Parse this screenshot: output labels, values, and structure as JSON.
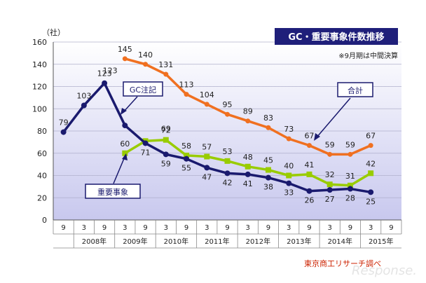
{
  "chart_data": {
    "type": "line",
    "title": "GC・重要事象件数推移",
    "note": "※9月期は中間決算",
    "unit_label": "（社）",
    "source": "東京商工リサーチ調べ",
    "watermark": "Response.",
    "ylim": [
      0,
      160
    ],
    "y_ticks": [
      "0",
      "20",
      "40",
      "60",
      "80",
      "100",
      "120",
      "140",
      "160"
    ],
    "x_ticks": [
      "9",
      "3",
      "9",
      "3",
      "9",
      "3",
      "9",
      "3",
      "9",
      "3",
      "9",
      "3",
      "9",
      "3",
      "9",
      "3",
      "9"
    ],
    "year_labels": [
      "2008年",
      "2009年",
      "2010年",
      "2011年",
      "2012年",
      "2013年",
      "2014年",
      "2015年"
    ],
    "grid": true,
    "series": [
      {
        "name": "合計",
        "color": "#f07020",
        "start_index": 3,
        "values": [
          145,
          140,
          131,
          113,
          104,
          95,
          89,
          83,
          73,
          67,
          59,
          59,
          67
        ],
        "labels": [
          "145",
          "140",
          "131",
          "113",
          "104",
          "95",
          "89",
          "83",
          "73",
          "67",
          "59",
          "59",
          "67"
        ]
      },
      {
        "name": "GC注記",
        "color": "#1a1a6e",
        "start_index": 0,
        "values": [
          79,
          103,
          123,
          85,
          69,
          59,
          55,
          47,
          42,
          41,
          38,
          33,
          26,
          27,
          28,
          25
        ],
        "labels": [
          "79",
          "103",
          "123",
          "",
          "",
          "59",
          "55",
          "47",
          "42",
          "41",
          "38",
          "33",
          "26",
          "27",
          "28",
          "25"
        ]
      },
      {
        "name": "重要事象",
        "color": "#99cc00",
        "start_index": 3,
        "values": [
          60,
          71,
          72,
          58,
          57,
          53,
          48,
          45,
          40,
          41,
          32,
          31,
          42
        ],
        "labels": [
          "60",
          "71",
          "72",
          "58",
          "57",
          "53",
          "48",
          "45",
          "40",
          "41",
          "32",
          "31",
          "42"
        ]
      }
    ],
    "extra_labels": [
      "123",
      "69"
    ]
  }
}
